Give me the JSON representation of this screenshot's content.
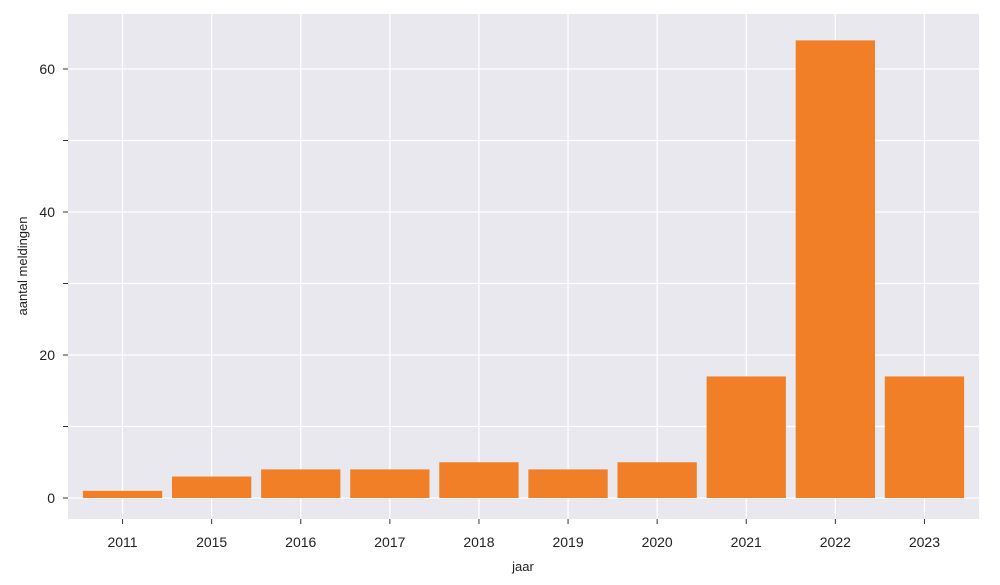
{
  "chart_data": {
    "type": "bar",
    "title": "",
    "xlabel": "jaar",
    "ylabel": "aantal meldingen",
    "categories": [
      "2011",
      "2015",
      "2016",
      "2017",
      "2018",
      "2019",
      "2020",
      "2021",
      "2022",
      "2023"
    ],
    "values": [
      1,
      3,
      4,
      4,
      5,
      4,
      5,
      17,
      64,
      17
    ],
    "ylim": [
      0,
      67
    ],
    "yticks": [
      0,
      20,
      40,
      60
    ],
    "y_minor_ticks": [
      10,
      30,
      50
    ],
    "grid": true,
    "colors": {
      "bar": "#f07f28",
      "panel": "#e9e8ee",
      "grid": "#ffffff"
    }
  }
}
